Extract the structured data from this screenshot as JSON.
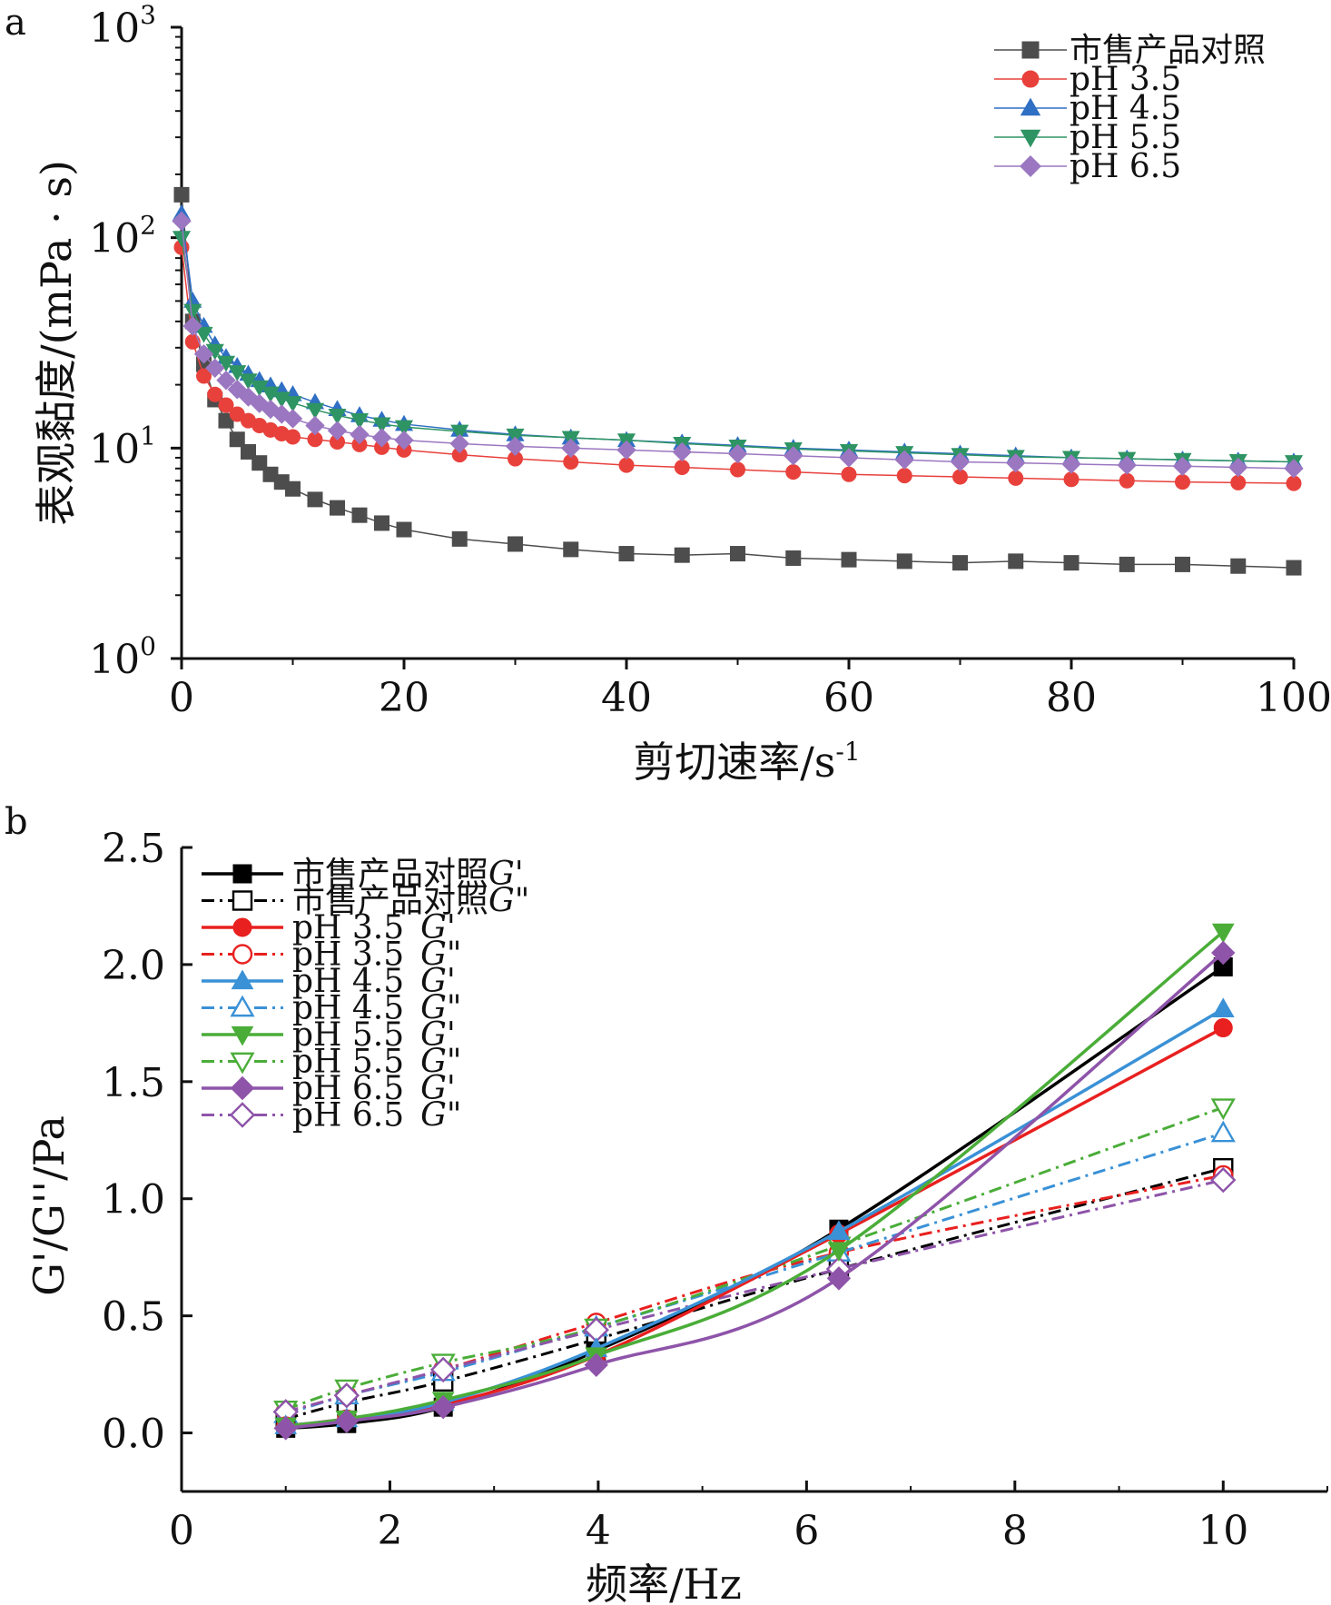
{
  "chart_data": [
    {
      "panel": "a",
      "type": "scatter",
      "xlabel": "剪切速率/s",
      "xlabel_sup": "-1",
      "ylabel": "表观黏度/(mPa · s)",
      "x_scale": "linear",
      "y_scale": "log",
      "xlim": [
        0,
        100
      ],
      "ylim": [
        1,
        1000
      ],
      "x_ticks": [
        "0",
        "20",
        "40",
        "60",
        "80",
        "100"
      ],
      "y_ticks": [
        {
          "base": "10",
          "exp": "0"
        },
        {
          "base": "10",
          "exp": "1"
        },
        {
          "base": "10",
          "exp": "2"
        },
        {
          "base": "10",
          "exp": "3"
        }
      ],
      "legend_position": "top-right",
      "series": [
        {
          "name": "市售产品对照",
          "color": "#4d4d4d",
          "marker": "square",
          "points": [
            [
              0,
              160
            ],
            [
              1,
              40
            ],
            [
              2,
              25
            ],
            [
              3,
              17
            ],
            [
              4,
              13.5
            ],
            [
              5,
              11
            ],
            [
              6,
              9.6
            ],
            [
              7,
              8.5
            ],
            [
              8,
              7.5
            ],
            [
              9,
              6.9
            ],
            [
              10,
              6.4
            ],
            [
              12,
              5.7
            ],
            [
              14,
              5.2
            ],
            [
              16,
              4.8
            ],
            [
              18,
              4.4
            ],
            [
              20,
              4.1
            ],
            [
              25,
              3.7
            ],
            [
              30,
              3.5
            ],
            [
              35,
              3.3
            ],
            [
              40,
              3.15
            ],
            [
              45,
              3.1
            ],
            [
              50,
              3.15
            ],
            [
              55,
              3.0
            ],
            [
              60,
              2.95
            ],
            [
              65,
              2.9
            ],
            [
              70,
              2.85
            ],
            [
              75,
              2.9
            ],
            [
              80,
              2.85
            ],
            [
              85,
              2.8
            ],
            [
              90,
              2.8
            ],
            [
              95,
              2.75
            ],
            [
              100,
              2.7
            ]
          ]
        },
        {
          "name": "pH 3.5",
          "color": "#e8413c",
          "marker": "circle",
          "points": [
            [
              0,
              90
            ],
            [
              1,
              32
            ],
            [
              2,
              22
            ],
            [
              3,
              18
            ],
            [
              4,
              16
            ],
            [
              5,
              14.5
            ],
            [
              6,
              13.5
            ],
            [
              7,
              12.8
            ],
            [
              8,
              12.2
            ],
            [
              9,
              11.7
            ],
            [
              10,
              11.3
            ],
            [
              12,
              11
            ],
            [
              14,
              10.7
            ],
            [
              16,
              10.4
            ],
            [
              18,
              10.1
            ],
            [
              20,
              9.8
            ],
            [
              25,
              9.3
            ],
            [
              30,
              8.9
            ],
            [
              35,
              8.6
            ],
            [
              40,
              8.3
            ],
            [
              45,
              8.1
            ],
            [
              50,
              7.9
            ],
            [
              55,
              7.7
            ],
            [
              60,
              7.5
            ],
            [
              65,
              7.4
            ],
            [
              70,
              7.3
            ],
            [
              75,
              7.2
            ],
            [
              80,
              7.1
            ],
            [
              85,
              7.0
            ],
            [
              90,
              6.9
            ],
            [
              95,
              6.85
            ],
            [
              100,
              6.8
            ]
          ]
        },
        {
          "name": "pH 4.5",
          "color": "#2f6fc4",
          "marker": "triangle-up",
          "points": [
            [
              0,
              130
            ],
            [
              1,
              50
            ],
            [
              2,
              38
            ],
            [
              3,
              31
            ],
            [
              4,
              27
            ],
            [
              5,
              24.5
            ],
            [
              6,
              22.5
            ],
            [
              7,
              21
            ],
            [
              8,
              19.8
            ],
            [
              9,
              18.8
            ],
            [
              10,
              18
            ],
            [
              12,
              16.5
            ],
            [
              14,
              15.3
            ],
            [
              16,
              14.3
            ],
            [
              18,
              13.6
            ],
            [
              20,
              13
            ],
            [
              25,
              12.2
            ],
            [
              30,
              11.6
            ],
            [
              35,
              11.2
            ],
            [
              40,
              10.9
            ],
            [
              45,
              10.6
            ],
            [
              50,
              10.3
            ],
            [
              55,
              10
            ],
            [
              60,
              9.8
            ],
            [
              65,
              9.6
            ],
            [
              70,
              9.4
            ],
            [
              75,
              9.2
            ],
            [
              80,
              9.0
            ],
            [
              85,
              8.9
            ],
            [
              90,
              8.8
            ],
            [
              95,
              8.7
            ],
            [
              100,
              8.6
            ]
          ]
        },
        {
          "name": "pH 5.5",
          "color": "#2e9463",
          "marker": "triangle-down",
          "points": [
            [
              0,
              100
            ],
            [
              1,
              45
            ],
            [
              2,
              35
            ],
            [
              3,
              29
            ],
            [
              4,
              25.5
            ],
            [
              5,
              23
            ],
            [
              6,
              21
            ],
            [
              7,
              19.5
            ],
            [
              8,
              18.2
            ],
            [
              9,
              17.2
            ],
            [
              10,
              16.4
            ],
            [
              12,
              15.2
            ],
            [
              14,
              14.3
            ],
            [
              16,
              13.6
            ],
            [
              18,
              13
            ],
            [
              20,
              12.6
            ],
            [
              25,
              12
            ],
            [
              30,
              11.5
            ],
            [
              35,
              11.2
            ],
            [
              40,
              10.9
            ],
            [
              45,
              10.5
            ],
            [
              50,
              10.2
            ],
            [
              55,
              9.9
            ],
            [
              60,
              9.7
            ],
            [
              65,
              9.5
            ],
            [
              70,
              9.3
            ],
            [
              75,
              9.1
            ],
            [
              80,
              9.0
            ],
            [
              85,
              8.9
            ],
            [
              90,
              8.8
            ],
            [
              95,
              8.7
            ],
            [
              100,
              8.6
            ]
          ]
        },
        {
          "name": "pH 6.5",
          "color": "#9b77c1",
          "marker": "diamond",
          "points": [
            [
              0,
              120
            ],
            [
              1,
              38
            ],
            [
              2,
              28
            ],
            [
              3,
              24
            ],
            [
              4,
              21
            ],
            [
              5,
              19
            ],
            [
              6,
              17.5
            ],
            [
              7,
              16.3
            ],
            [
              8,
              15.3
            ],
            [
              9,
              14.5
            ],
            [
              10,
              13.8
            ],
            [
              12,
              12.8
            ],
            [
              14,
              12.1
            ],
            [
              16,
              11.6
            ],
            [
              18,
              11.2
            ],
            [
              20,
              10.9
            ],
            [
              25,
              10.5
            ],
            [
              30,
              10.2
            ],
            [
              35,
              10
            ],
            [
              40,
              9.8
            ],
            [
              45,
              9.6
            ],
            [
              50,
              9.4
            ],
            [
              55,
              9.2
            ],
            [
              60,
              9.0
            ],
            [
              65,
              8.8
            ],
            [
              70,
              8.6
            ],
            [
              75,
              8.5
            ],
            [
              80,
              8.4
            ],
            [
              85,
              8.3
            ],
            [
              90,
              8.2
            ],
            [
              95,
              8.1
            ],
            [
              100,
              8.0
            ]
          ]
        }
      ]
    },
    {
      "panel": "b",
      "type": "line",
      "xlabel": "频率/Hz",
      "ylabel": "G'/G''/Pa",
      "xlim": [
        0,
        11
      ],
      "ylim": [
        -0.25,
        2.5
      ],
      "x_ticks": [
        "0",
        "2",
        "4",
        "6",
        "8",
        "10"
      ],
      "y_ticks": [
        "0.0",
        "0.5",
        "1.0",
        "1.5",
        "2.0",
        "2.5"
      ],
      "legend_position": "top-left",
      "x": [
        1,
        1.585,
        2.512,
        3.981,
        6.31,
        10
      ],
      "series": [
        {
          "name": "市售产品对照",
          "modulus": "G'",
          "color": "#000000",
          "marker": "square",
          "filled": true,
          "line": "solid",
          "values": [
            0.02,
            0.04,
            0.11,
            0.35,
            0.87,
            1.99
          ]
        },
        {
          "name": "市售产品对照",
          "modulus": "G\"",
          "color": "#000000",
          "marker": "square",
          "filled": false,
          "line": "dashdot",
          "values": [
            0.06,
            0.13,
            0.22,
            0.4,
            0.7,
            1.13
          ]
        },
        {
          "name": "pH 3.5",
          "modulus": "G'",
          "color": "#e8201f",
          "marker": "circle",
          "filled": true,
          "line": "solid",
          "values": [
            0.03,
            0.06,
            0.12,
            0.33,
            0.85,
            1.73
          ]
        },
        {
          "name": "pH 3.5",
          "modulus": "G\"",
          "color": "#e8201f",
          "marker": "circle",
          "filled": false,
          "line": "dashdot",
          "values": [
            0.09,
            0.16,
            0.27,
            0.47,
            0.77,
            1.1
          ]
        },
        {
          "name": "pH 4.5",
          "modulus": "G'",
          "color": "#3a91d6",
          "marker": "triangle-up",
          "filled": true,
          "line": "solid",
          "values": [
            0.03,
            0.06,
            0.13,
            0.36,
            0.86,
            1.81
          ]
        },
        {
          "name": "pH 4.5",
          "modulus": "G\"",
          "color": "#3a91d6",
          "marker": "triangle-up",
          "filled": false,
          "line": "dashdot",
          "values": [
            0.08,
            0.16,
            0.26,
            0.45,
            0.77,
            1.28
          ]
        },
        {
          "name": "pH 5.5",
          "modulus": "G'",
          "color": "#4aad38",
          "marker": "triangle-down",
          "filled": true,
          "line": "solid",
          "values": [
            0.03,
            0.06,
            0.14,
            0.33,
            0.78,
            2.14
          ]
        },
        {
          "name": "pH 5.5",
          "modulus": "G\"",
          "color": "#4aad38",
          "marker": "triangle-down",
          "filled": false,
          "line": "dashdot",
          "values": [
            0.1,
            0.19,
            0.3,
            0.45,
            0.8,
            1.39
          ]
        },
        {
          "name": "pH 6.5",
          "modulus": "G'",
          "color": "#8e54a9",
          "marker": "diamond",
          "filled": true,
          "line": "solid",
          "values": [
            0.02,
            0.05,
            0.11,
            0.29,
            0.66,
            2.05
          ]
        },
        {
          "name": "pH 6.5",
          "modulus": "G\"",
          "color": "#8e54a9",
          "marker": "diamond",
          "filled": false,
          "line": "dashdot",
          "values": [
            0.09,
            0.16,
            0.27,
            0.44,
            0.7,
            1.08
          ]
        }
      ]
    }
  ]
}
